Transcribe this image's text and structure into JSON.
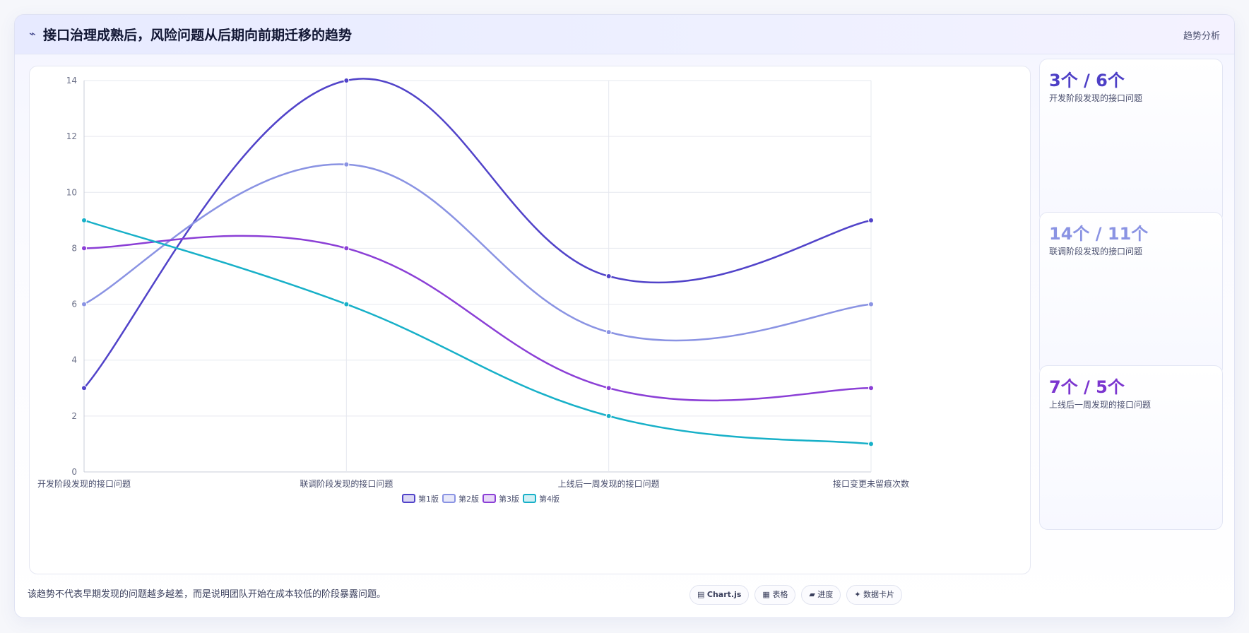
{
  "header": {
    "icon": "⌁",
    "icon_name": "trend-icon",
    "title": "接口治理成熟后，风险问题从后期向前期迁移的趋势",
    "tag": "趋势分析"
  },
  "chart_data": {
    "type": "line",
    "categories": [
      "开发阶段发现的接口问题",
      "联调阶段发现的接口问题",
      "上线后一周发现的接口问题",
      "接口变更未留痕次数"
    ],
    "series": [
      {
        "name": "第1版",
        "values": [
          3,
          14,
          7,
          9
        ],
        "color": "#5143c9"
      },
      {
        "name": "第2版",
        "values": [
          6,
          11,
          5,
          6
        ],
        "color": "#8a93e3"
      },
      {
        "name": "第3版",
        "values": [
          8,
          8,
          3,
          3
        ],
        "color": "#8b3fd6"
      },
      {
        "name": "第4版",
        "values": [
          9,
          6,
          2,
          1
        ],
        "color": "#17b0c8"
      }
    ],
    "ylim": [
      0,
      14
    ],
    "yticks": [
      0,
      2,
      4,
      6,
      8,
      10,
      12,
      14
    ],
    "grid": true,
    "legend": "bottom",
    "smooth": true
  },
  "side_cards": [
    {
      "value": "3个 / 6个",
      "label": "开发阶段发现的接口问题",
      "color": "#4d3fc6"
    },
    {
      "value": "14个 / 11个",
      "label": "联调阶段发现的接口问题",
      "color": "#8a93e3"
    },
    {
      "value": "7个 / 5个",
      "label": "上线后一周发现的接口问题",
      "color": "#7b35cf"
    }
  ],
  "footer": {
    "note": "该趋势不代表早期发现的问题越多越差，而是说明团队开始在成本较低的阶段暴露问题。",
    "chips": [
      {
        "icon": "▤",
        "icon_name": "chart-icon",
        "label": "Chart.js",
        "bold": true
      },
      {
        "icon": "▦",
        "icon_name": "table-icon",
        "label": "表格",
        "bold": false
      },
      {
        "icon": "▰",
        "icon_name": "progress-icon",
        "label": "进度",
        "bold": false
      },
      {
        "icon": "✦",
        "icon_name": "sparkle-icon",
        "label": "数据卡片",
        "bold": false
      }
    ]
  }
}
